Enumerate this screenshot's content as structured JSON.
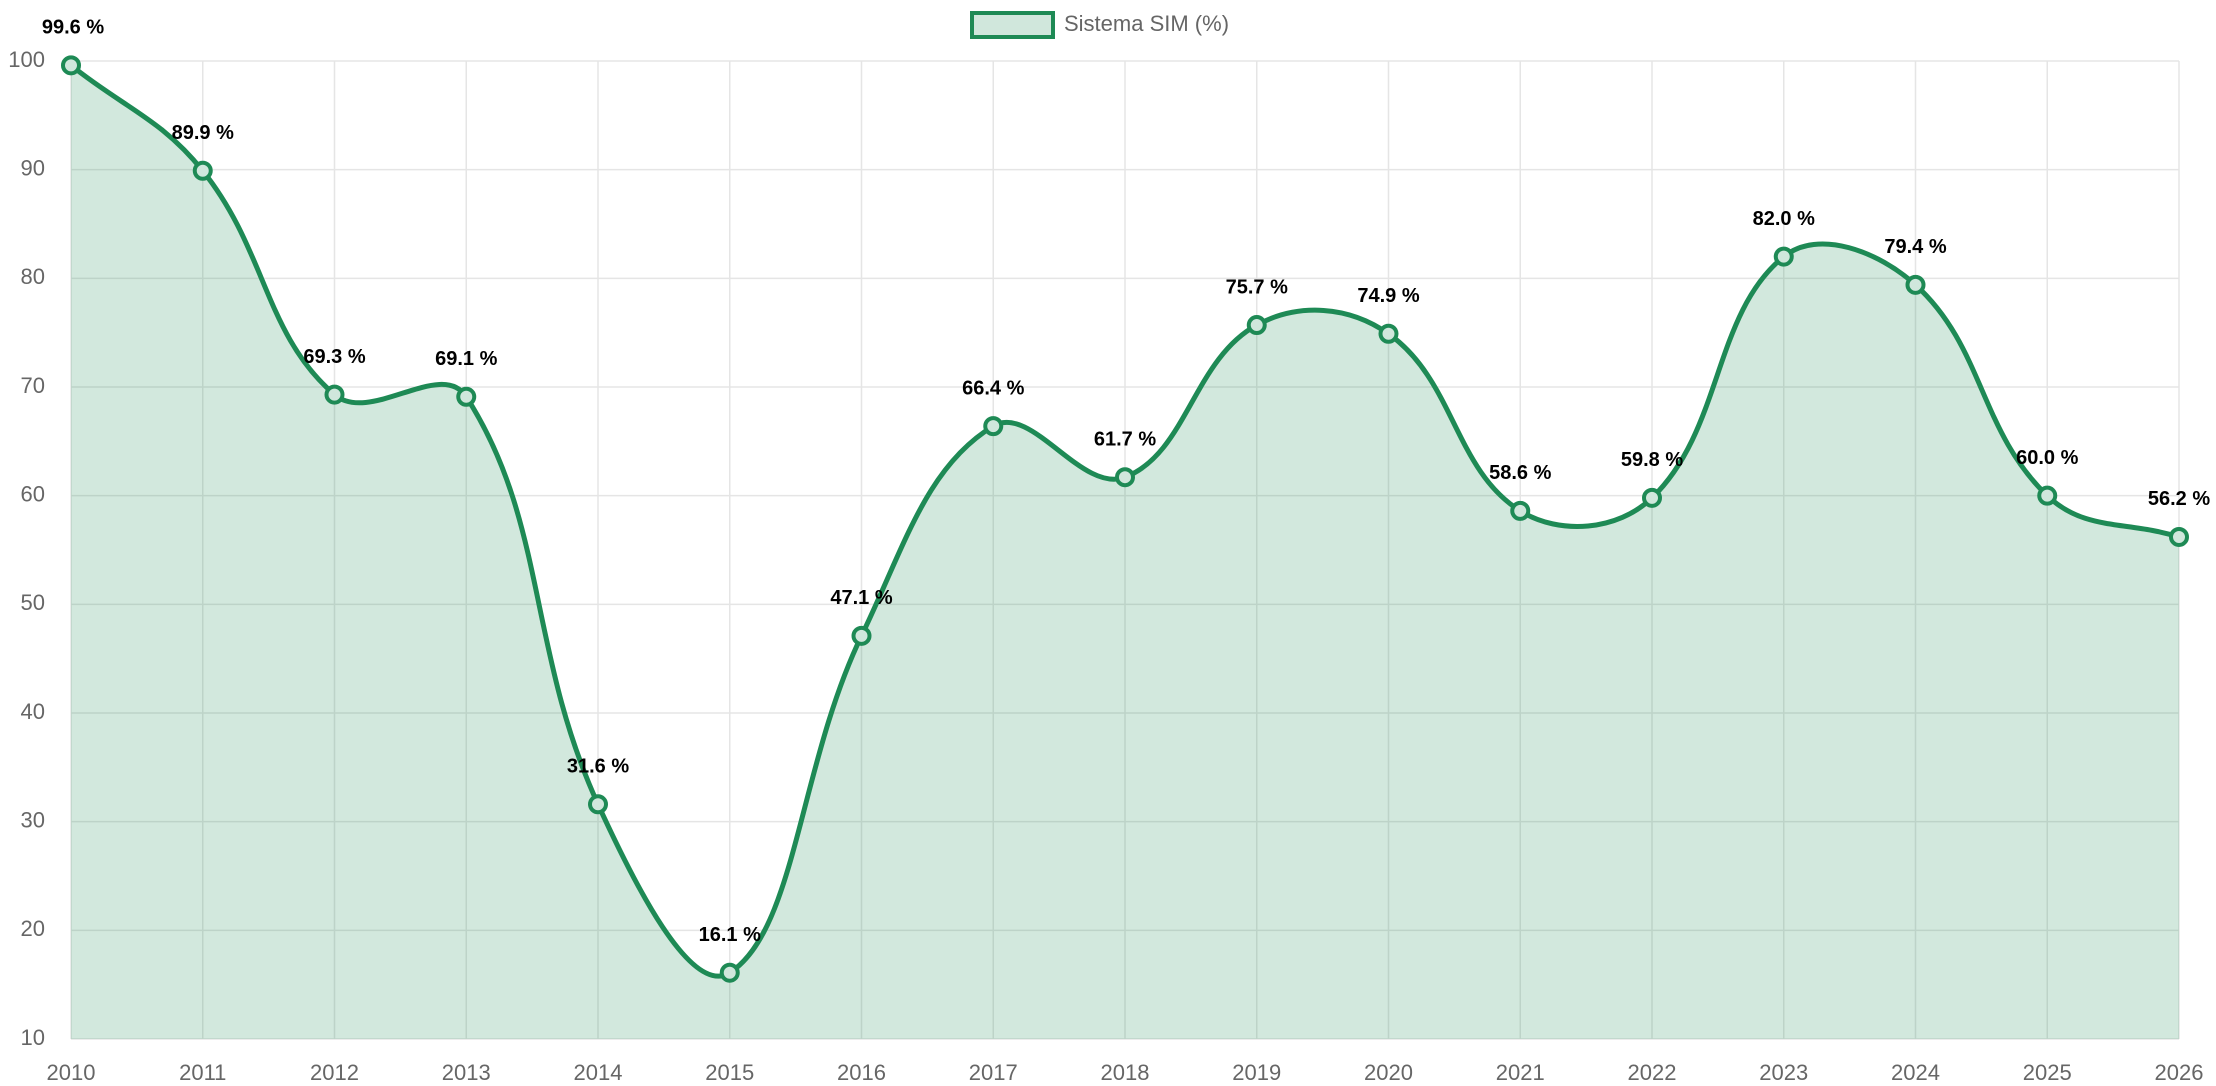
{
  "chart_data": {
    "type": "line",
    "categories": [
      "2010",
      "2011",
      "2012",
      "2013",
      "2014",
      "2015",
      "2016",
      "2017",
      "2018",
      "2019",
      "2020",
      "2021",
      "2022",
      "2023",
      "2024",
      "2025",
      "2026"
    ],
    "series": [
      {
        "name": "Sistema SIM (%)",
        "color": "#1e8a55",
        "values": [
          99.6,
          89.9,
          69.3,
          69.1,
          31.6,
          16.1,
          47.1,
          66.4,
          61.7,
          75.7,
          74.9,
          58.6,
          59.8,
          82.0,
          79.4,
          60.0,
          56.2
        ],
        "value_labels": [
          "99.6 %",
          "89.9 %",
          "69.3 %",
          "69.1 %",
          "31.6 %",
          "16.1 %",
          "47.1 %",
          "66.4 %",
          "61.7 %",
          "75.7 %",
          "74.9 %",
          "58.6 %",
          "59.8 %",
          "82.0 %",
          "79.4 %",
          "60.0 %",
          "56.2 %"
        ]
      }
    ],
    "ylim": [
      10,
      100
    ],
    "yticks": [
      10,
      20,
      30,
      40,
      50,
      60,
      70,
      80,
      90,
      100
    ],
    "grid": true,
    "legend": "top",
    "fill": true
  }
}
